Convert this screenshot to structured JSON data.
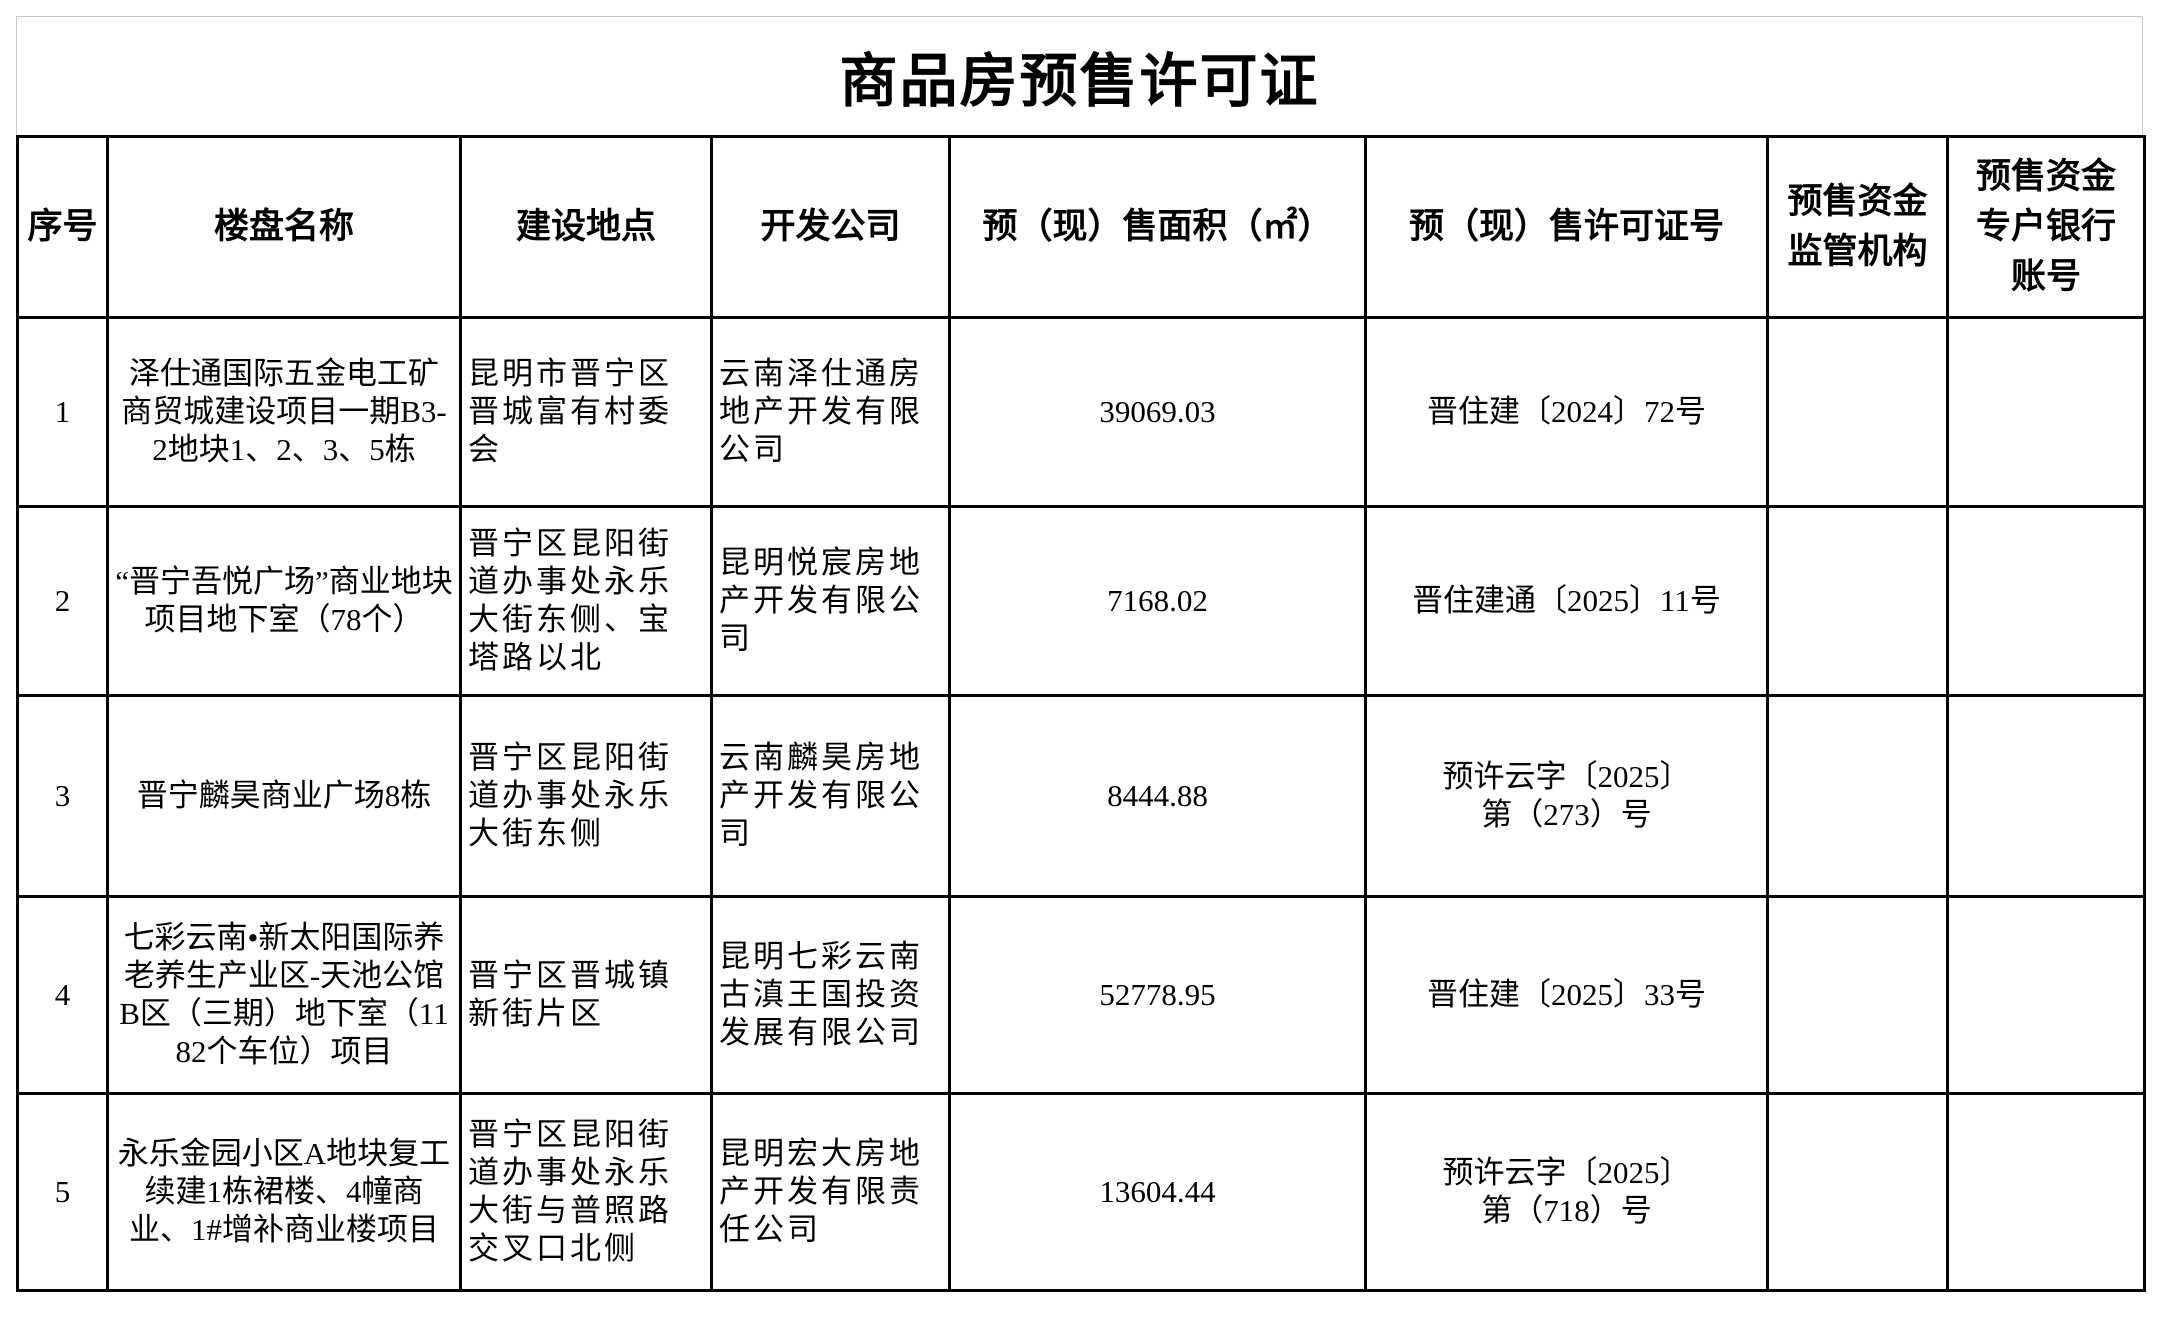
{
  "title": "商品房预售许可证",
  "headers": [
    "序号",
    "楼盘名称",
    "建设地点",
    "开发公司",
    "预（现）售面积（㎡）",
    "预（现）售许可证号",
    "预售资金监管机构",
    "预售资金专户银行账号"
  ],
  "rows": [
    {
      "no": "1",
      "name": "泽仕通国际五金电工矿商贸城建设项目一期B3-2地块1、2、3、5栋",
      "location": "昆明市晋宁区晋城富有村委会",
      "company": "云南泽仕通房地产开发有限公司",
      "area": "39069.03",
      "permit": "晋住建〔2024〕72号",
      "supervisor": "",
      "account": ""
    },
    {
      "no": "2",
      "name": "“晋宁吾悦广场”商业地块项目地下室（78个）",
      "location": "晋宁区昆阳街道办事处永乐大街东侧、宝塔路以北",
      "company": "昆明悦宸房地产开发有限公司",
      "area": "7168.02",
      "permit": "晋住建通〔2025〕11号",
      "supervisor": "",
      "account": ""
    },
    {
      "no": "3",
      "name": "晋宁麟昊商业广场8栋",
      "location": "晋宁区昆阳街道办事处永乐大街东侧",
      "company": "云南麟昊房地产开发有限公司",
      "area": "8444.88",
      "permit": "预许云字〔2025〕第（273）号",
      "supervisor": "",
      "account": ""
    },
    {
      "no": "4",
      "name": "七彩云南•新太阳国际养老养生产业区-天池公馆B区（三期）地下室（1182个车位）项目",
      "location": "晋宁区晋城镇新街片区",
      "company": "昆明七彩云南古滇王国投资发展有限公司",
      "area": "52778.95",
      "permit": "晋住建〔2025〕33号",
      "supervisor": "",
      "account": ""
    },
    {
      "no": "5",
      "name": "永乐金园小区A地块复工续建1栋裙楼、4幢商业、1#增补商业楼项目",
      "location": "晋宁区昆阳街道办事处永乐大街与普照路交叉口北侧",
      "company": "昆明宏大房地产开发有限责任公司",
      "area": "13604.44",
      "permit": "预许云字〔2025〕第（718）号",
      "supervisor": "",
      "account": ""
    }
  ]
}
